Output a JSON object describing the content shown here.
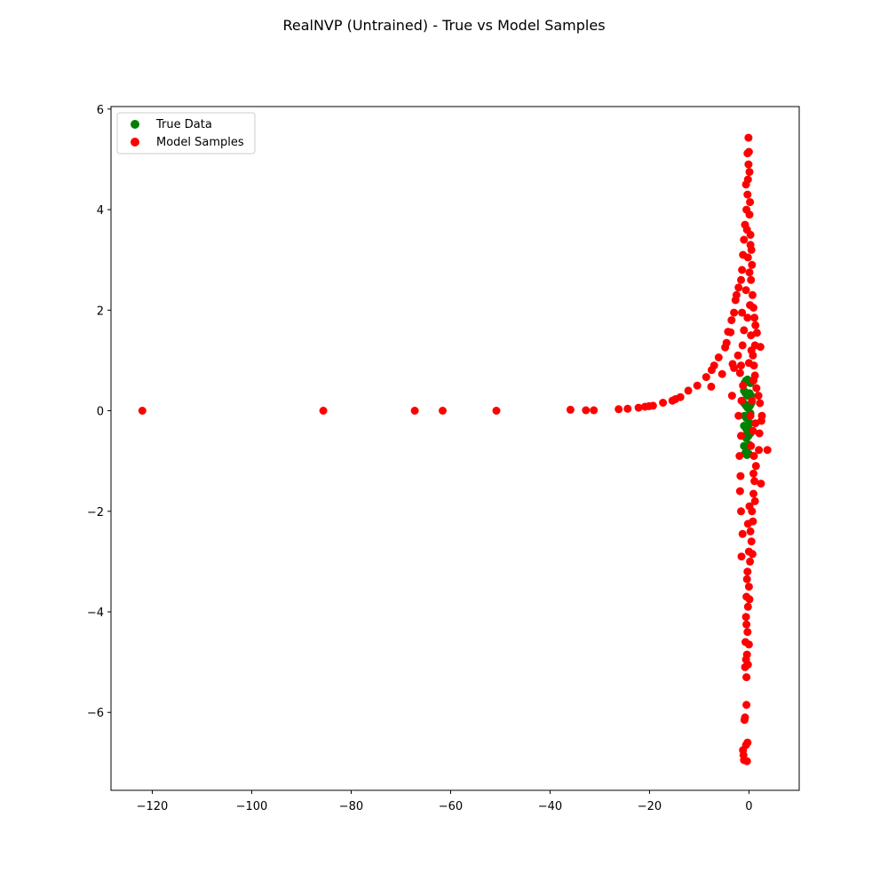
{
  "chart_data": {
    "type": "scatter",
    "title": "RealNVP (Untrained) - True vs Model Samples",
    "xlabel": "",
    "ylabel": "",
    "xlim": [
      -128.3,
      10.1
    ],
    "ylim": [
      -7.55,
      6.05
    ],
    "xticks": [
      -120,
      -100,
      -80,
      -60,
      -40,
      -20,
      0
    ],
    "xtick_labels": [
      "−120",
      "−100",
      "−80",
      "−60",
      "−40",
      "−20",
      "0"
    ],
    "yticks": [
      -6,
      -4,
      -2,
      0,
      2,
      4,
      6
    ],
    "ytick_labels": [
      "−6",
      "−4",
      "−2",
      "0",
      "2",
      "4",
      "6"
    ],
    "grid": false,
    "legend_position": "top-left",
    "series": [
      {
        "name": "True Data",
        "color": "#008000",
        "points": [
          [
            -0.9,
            0.55
          ],
          [
            -0.6,
            0.6
          ],
          [
            -0.3,
            0.62
          ],
          [
            0.0,
            0.6
          ],
          [
            0.3,
            0.55
          ],
          [
            -1.0,
            0.4
          ],
          [
            -0.7,
            0.35
          ],
          [
            -0.4,
            0.3
          ],
          [
            0.1,
            0.35
          ],
          [
            0.4,
            0.3
          ],
          [
            -1.0,
            0.15
          ],
          [
            -0.6,
            0.1
          ],
          [
            -0.2,
            0.05
          ],
          [
            0.2,
            0.1
          ],
          [
            0.5,
            0.15
          ],
          [
            -0.9,
            -0.1
          ],
          [
            -0.5,
            -0.15
          ],
          [
            -0.1,
            -0.1
          ],
          [
            0.3,
            -0.05
          ],
          [
            -1.0,
            -0.3
          ],
          [
            -0.6,
            -0.35
          ],
          [
            -0.2,
            -0.3
          ],
          [
            0.2,
            -0.25
          ],
          [
            -0.9,
            -0.5
          ],
          [
            -0.5,
            -0.55
          ],
          [
            -0.1,
            -0.5
          ],
          [
            0.3,
            -0.45
          ],
          [
            -1.0,
            -0.7
          ],
          [
            -0.6,
            -0.75
          ],
          [
            -0.2,
            -0.72
          ],
          [
            0.1,
            -0.68
          ],
          [
            -0.8,
            -0.85
          ],
          [
            -0.4,
            -0.88
          ],
          [
            0.0,
            -0.86
          ]
        ]
      },
      {
        "name": "Model Samples",
        "color": "#ff0000",
        "points": [
          [
            -122.0,
            0.0
          ],
          [
            -85.6,
            0.0
          ],
          [
            -67.2,
            0.0
          ],
          [
            -61.6,
            0.0
          ],
          [
            -50.8,
            0.0
          ],
          [
            -35.9,
            0.02
          ],
          [
            -32.8,
            0.01
          ],
          [
            -31.2,
            0.01
          ],
          [
            -26.2,
            0.03
          ],
          [
            -24.4,
            0.04
          ],
          [
            -22.2,
            0.06
          ],
          [
            -20.9,
            0.08
          ],
          [
            -20.1,
            0.09
          ],
          [
            -19.3,
            0.1
          ],
          [
            -17.3,
            0.16
          ],
          [
            -15.4,
            0.2
          ],
          [
            -14.8,
            0.23
          ],
          [
            -13.8,
            0.27
          ],
          [
            -12.2,
            0.4
          ],
          [
            -10.4,
            0.5
          ],
          [
            -8.6,
            0.67
          ],
          [
            -7.6,
            0.48
          ],
          [
            -7.5,
            0.81
          ],
          [
            -7.0,
            0.9
          ],
          [
            -6.1,
            1.06
          ],
          [
            -5.4,
            0.73
          ],
          [
            -4.8,
            1.26
          ],
          [
            -4.5,
            1.35
          ],
          [
            -4.2,
            1.57
          ],
          [
            -3.7,
            1.56
          ],
          [
            -3.5,
            1.8
          ],
          [
            -3.0,
            1.95
          ],
          [
            -2.7,
            2.2
          ],
          [
            -2.5,
            2.3
          ],
          [
            -2.1,
            2.45
          ],
          [
            -3.3,
            0.93
          ],
          [
            -3.0,
            0.85
          ],
          [
            -3.4,
            0.3
          ],
          [
            -1.8,
            0.75
          ],
          [
            -2.2,
            1.1
          ],
          [
            -1.6,
            2.6
          ],
          [
            -1.4,
            2.8
          ],
          [
            -1.2,
            3.1
          ],
          [
            -1.0,
            3.4
          ],
          [
            -0.8,
            3.7
          ],
          [
            -0.5,
            4.0
          ],
          [
            -0.3,
            4.3
          ],
          [
            -0.2,
            4.6
          ],
          [
            -0.1,
            4.9
          ],
          [
            0.0,
            5.15
          ],
          [
            -0.1,
            5.43
          ],
          [
            0.1,
            3.9
          ],
          [
            0.3,
            3.5
          ],
          [
            0.5,
            3.2
          ],
          [
            0.6,
            2.9
          ],
          [
            0.4,
            2.6
          ],
          [
            0.7,
            2.3
          ],
          [
            0.9,
            2.05
          ],
          [
            1.1,
            1.85
          ],
          [
            1.3,
            1.7
          ],
          [
            1.6,
            1.55
          ],
          [
            2.3,
            1.27
          ],
          [
            1.2,
            1.3
          ],
          [
            0.8,
            1.1
          ],
          [
            1.0,
            0.9
          ],
          [
            1.2,
            0.7
          ],
          [
            1.5,
            0.45
          ],
          [
            1.9,
            0.3
          ],
          [
            2.2,
            0.15
          ],
          [
            2.6,
            -0.1
          ],
          [
            2.5,
            -0.2
          ],
          [
            2.1,
            -0.45
          ],
          [
            2.0,
            -0.78
          ],
          [
            3.7,
            -0.78
          ],
          [
            2.4,
            -1.45
          ],
          [
            1.4,
            -1.1
          ],
          [
            1.1,
            -1.4
          ],
          [
            0.9,
            -1.65
          ],
          [
            1.2,
            -1.8
          ],
          [
            0.6,
            -2.0
          ],
          [
            0.8,
            -2.2
          ],
          [
            0.3,
            -2.4
          ],
          [
            0.5,
            -2.6
          ],
          [
            0.0,
            -2.8
          ],
          [
            0.2,
            -3.0
          ],
          [
            -0.3,
            -3.2
          ],
          [
            0.0,
            -3.5
          ],
          [
            -0.5,
            -3.7
          ],
          [
            -0.2,
            -3.9
          ],
          [
            -0.6,
            -4.1
          ],
          [
            -0.3,
            -4.4
          ],
          [
            -0.7,
            -4.6
          ],
          [
            -0.4,
            -4.85
          ],
          [
            -0.8,
            -5.1
          ],
          [
            -0.5,
            -5.3
          ],
          [
            -0.5,
            -5.85
          ],
          [
            -0.8,
            -6.1
          ],
          [
            -0.6,
            -6.65
          ],
          [
            -1.1,
            -6.85
          ],
          [
            -1.0,
            -6.95
          ],
          [
            -0.4,
            -6.97
          ],
          [
            -1.5,
            -2.9
          ],
          [
            -1.3,
            -2.45
          ],
          [
            -1.6,
            -2.0
          ],
          [
            -1.8,
            -1.6
          ],
          [
            -1.7,
            -1.3
          ],
          [
            -1.9,
            -0.9
          ],
          [
            -1.6,
            -0.5
          ],
          [
            -2.1,
            -0.1
          ],
          [
            -1.5,
            0.2
          ],
          [
            -1.2,
            0.5
          ],
          [
            -1.6,
            0.9
          ],
          [
            -1.3,
            1.3
          ],
          [
            -1.0,
            1.6
          ],
          [
            -1.4,
            1.95
          ],
          [
            0.6,
            0.2
          ],
          [
            0.3,
            -0.1
          ],
          [
            0.8,
            -0.4
          ],
          [
            0.4,
            -0.7
          ],
          [
            1.0,
            -0.9
          ],
          [
            0.5,
            1.2
          ],
          [
            0.9,
            0.6
          ],
          [
            -0.3,
            1.85
          ],
          [
            0.2,
            2.1
          ],
          [
            -0.6,
            2.4
          ],
          [
            0.1,
            2.75
          ],
          [
            -0.2,
            3.05
          ],
          [
            0.3,
            3.3
          ],
          [
            -0.4,
            3.6
          ],
          [
            0.2,
            4.15
          ],
          [
            -0.6,
            4.5
          ],
          [
            0.1,
            4.75
          ],
          [
            -0.3,
            5.12
          ],
          [
            0.4,
            1.5
          ],
          [
            0.0,
            0.95
          ],
          [
            1.3,
            -0.25
          ],
          [
            0.9,
            -1.25
          ],
          [
            0.1,
            -1.9
          ],
          [
            -0.2,
            -2.25
          ],
          [
            0.7,
            -2.85
          ],
          [
            -0.4,
            -3.35
          ],
          [
            0.1,
            -3.75
          ],
          [
            -0.5,
            -4.25
          ],
          [
            0.0,
            -4.65
          ],
          [
            -0.6,
            -4.95
          ],
          [
            -0.2,
            -5.05
          ],
          [
            -0.9,
            -6.15
          ],
          [
            -1.2,
            -6.75
          ],
          [
            -0.3,
            -6.6
          ]
        ]
      }
    ]
  }
}
